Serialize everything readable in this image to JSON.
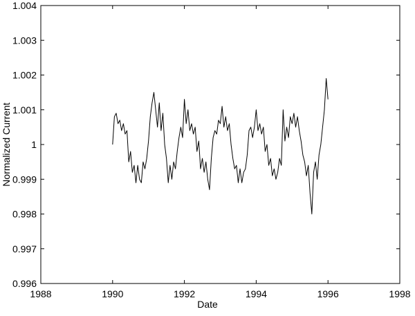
{
  "chart_data": {
    "type": "line",
    "x_label": "Date",
    "y_label": "Normalized Current",
    "xlim": [
      1988,
      1998
    ],
    "xticks": [
      1988,
      1990,
      1992,
      1994,
      1996,
      1998
    ],
    "ylim": [
      0.996,
      1.004
    ],
    "yticks": [
      0.996,
      0.997,
      0.998,
      0.999,
      1,
      1.001,
      1.002,
      1.003,
      1.004
    ],
    "grid": false,
    "x": [
      1990.0,
      1990.05,
      1990.1,
      1990.15,
      1990.2,
      1990.25,
      1990.3,
      1990.35,
      1990.4,
      1990.45,
      1990.5,
      1990.55,
      1990.6,
      1990.65,
      1990.7,
      1990.75,
      1990.8,
      1990.85,
      1990.9,
      1990.95,
      1991.0,
      1991.05,
      1991.1,
      1991.15,
      1991.2,
      1991.25,
      1991.3,
      1991.35,
      1991.4,
      1991.45,
      1991.5,
      1991.55,
      1991.6,
      1991.65,
      1991.7,
      1991.75,
      1991.8,
      1991.85,
      1991.9,
      1991.95,
      1992.0,
      1992.05,
      1992.1,
      1992.15,
      1992.2,
      1992.25,
      1992.3,
      1992.35,
      1992.4,
      1992.45,
      1992.5,
      1992.55,
      1992.6,
      1992.65,
      1992.7,
      1992.75,
      1992.8,
      1992.85,
      1992.9,
      1992.95,
      1993.0,
      1993.05,
      1993.1,
      1993.15,
      1993.2,
      1993.25,
      1993.3,
      1993.35,
      1993.4,
      1993.45,
      1993.5,
      1993.55,
      1993.6,
      1993.65,
      1993.7,
      1993.75,
      1993.8,
      1993.85,
      1993.9,
      1993.95,
      1994.0,
      1994.05,
      1994.1,
      1994.15,
      1994.2,
      1994.25,
      1994.3,
      1994.35,
      1994.4,
      1994.45,
      1994.5,
      1994.55,
      1994.6,
      1994.65,
      1994.7,
      1994.75,
      1994.8,
      1994.85,
      1994.9,
      1994.95,
      1995.0,
      1995.05,
      1995.1,
      1995.15,
      1995.2,
      1995.25,
      1995.3,
      1995.35,
      1995.4,
      1995.45,
      1995.5,
      1995.55,
      1995.6,
      1995.65,
      1995.7,
      1995.75,
      1995.8,
      1995.85,
      1995.9,
      1995.95,
      1996.0
    ],
    "series": [
      {
        "color": "#000000",
        "values": [
          1.0,
          1.0008,
          1.0009,
          1.0006,
          1.0007,
          1.0004,
          1.0006,
          1.0003,
          1.0004,
          0.9995,
          0.9998,
          0.9992,
          0.9994,
          0.9989,
          0.9994,
          0.999,
          0.9989,
          0.9995,
          0.9993,
          0.9996,
          1.0001,
          1.0008,
          1.0012,
          1.0015,
          1.001,
          1.0005,
          1.0012,
          1.0004,
          1.0009,
          1.0,
          0.9996,
          0.9989,
          0.9994,
          0.999,
          0.9995,
          0.9993,
          0.9998,
          1.0002,
          1.0005,
          1.0002,
          1.0013,
          1.0006,
          1.001,
          1.0004,
          1.0006,
          1.0003,
          1.0005,
          0.9998,
          1.0001,
          0.9993,
          0.9996,
          0.9992,
          0.9995,
          0.999,
          0.9987,
          0.9996,
          1.0002,
          1.0004,
          1.0003,
          1.0007,
          1.0006,
          1.0011,
          1.0005,
          1.0008,
          1.0004,
          1.0006,
          1.0,
          0.9996,
          0.9993,
          0.9994,
          0.9989,
          0.9993,
          0.9989,
          0.9992,
          0.9993,
          0.9997,
          1.0004,
          1.0005,
          1.0002,
          1.0005,
          1.001,
          1.0004,
          1.0006,
          1.0003,
          1.0005,
          0.9998,
          1.0,
          0.9994,
          0.9996,
          0.9991,
          0.9993,
          0.999,
          0.9992,
          0.9996,
          0.9994,
          1.001,
          1.0001,
          1.0005,
          1.0002,
          1.0008,
          1.0006,
          1.0009,
          1.0005,
          1.0008,
          1.0004,
          1.0001,
          0.9997,
          0.9995,
          0.9991,
          0.9994,
          0.9986,
          0.998,
          0.9992,
          0.9995,
          0.999,
          0.9997,
          1.0,
          1.0005,
          1.001,
          1.0019,
          1.0013
        ]
      }
    ]
  }
}
